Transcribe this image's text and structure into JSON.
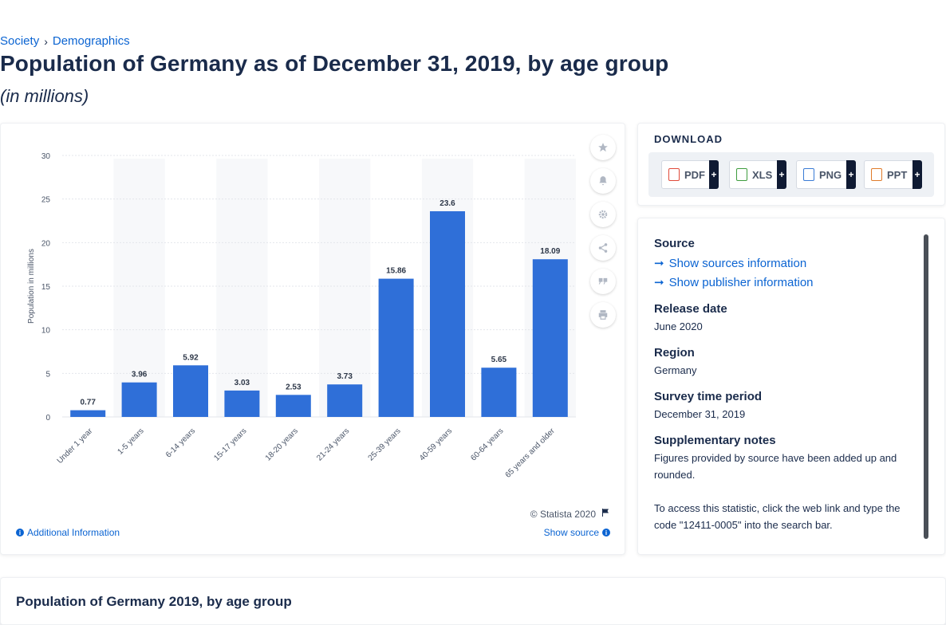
{
  "breadcrumb": {
    "items": [
      "Society",
      "Demographics"
    ],
    "separator": "›"
  },
  "page": {
    "title": "Population of Germany as of December 31, 2019, by age group",
    "subtitle": "(in millions)"
  },
  "chart_data": {
    "type": "bar",
    "categories": [
      "Under 1 year",
      "1-5 years",
      "6-14 years",
      "15-17 years",
      "18-20 years",
      "21-24 years",
      "25-39 years",
      "40-59 years",
      "60-64 years",
      "65 years and older"
    ],
    "values": [
      0.77,
      3.96,
      5.92,
      3.03,
      2.53,
      3.73,
      15.86,
      23.6,
      5.65,
      18.09
    ],
    "ylabel": "Population in millions",
    "ylim": [
      0,
      30
    ],
    "yticks": [
      "0",
      "5",
      "10",
      "15",
      "20",
      "25",
      "30"
    ],
    "grid": true,
    "bar_color": "#2f6fd8",
    "data_labels": [
      "0.77",
      "3.96",
      "5.92",
      "3.03",
      "2.53",
      "3.73",
      "15.86",
      "23.6",
      "5.65",
      "18.09"
    ]
  },
  "chart_footer": {
    "copyright": "© Statista 2020",
    "additional_info": "Additional Information",
    "show_source": "Show source"
  },
  "toolbar": {
    "icons": [
      "star-icon",
      "bell-icon",
      "gear-icon",
      "share-icon",
      "quote-icon",
      "print-icon"
    ]
  },
  "download": {
    "title": "DOWNLOAD",
    "buttons": [
      {
        "label": "PDF",
        "plus": "+",
        "color": "#e04a3a"
      },
      {
        "label": "XLS",
        "plus": "+",
        "color": "#3e9c3e"
      },
      {
        "label": "PNG",
        "plus": "+",
        "color": "#3a7bd5"
      },
      {
        "label": "PPT",
        "plus": "+",
        "color": "#e07b2a"
      }
    ]
  },
  "source_panel": {
    "source_label": "Source",
    "show_sources": "Show sources information",
    "show_publisher": "Show publisher information",
    "release_label": "Release date",
    "release_value": "June 2020",
    "region_label": "Region",
    "region_value": "Germany",
    "survey_label": "Survey time period",
    "survey_value": "December 31, 2019",
    "notes_label": "Supplementary notes",
    "notes_value": "Figures provided by source have been added up and rounded.",
    "notes_value2": "To access this statistic, click the web link and type the code \"12411-0005\" into the search bar."
  },
  "bottom": {
    "title": "Population of Germany 2019, by age group"
  }
}
